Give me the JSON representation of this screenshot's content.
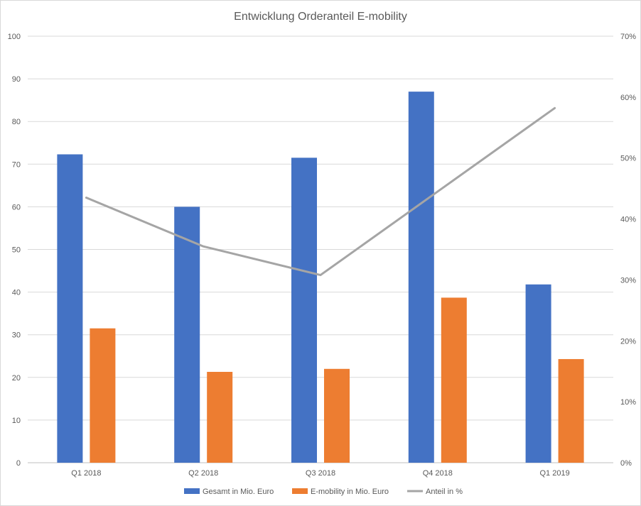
{
  "chart_data": {
    "type": "bar",
    "title": "Entwicklung Orderanteil E-mobility",
    "categories": [
      "Q1 2018",
      "Q2 2018",
      "Q3 2018",
      "Q4 2018",
      "Q1 2019"
    ],
    "series": [
      {
        "name": "Gesamt in Mio. Euro",
        "type": "bar",
        "axis": "left",
        "color": "#4472C4",
        "values": [
          72.3,
          60.0,
          71.5,
          87.0,
          41.8
        ]
      },
      {
        "name": "E-mobility in Mio. Euro",
        "type": "bar",
        "axis": "left",
        "color": "#ED7D31",
        "values": [
          31.5,
          21.3,
          22.0,
          38.7,
          24.3
        ]
      },
      {
        "name": "Anteil in %",
        "type": "line",
        "axis": "right",
        "color": "#A5A5A5",
        "values": [
          0.435,
          0.355,
          0.308,
          0.445,
          0.582
        ]
      }
    ],
    "y_left": {
      "min": 0,
      "max": 100,
      "step": 10,
      "ticks": [
        "0",
        "10",
        "20",
        "30",
        "40",
        "50",
        "60",
        "70",
        "80",
        "90",
        "100"
      ]
    },
    "y_right": {
      "min": 0,
      "max": 0.7,
      "step": 0.1,
      "ticks": [
        "0%",
        "10%",
        "20%",
        "30%",
        "40%",
        "50%",
        "60%",
        "70%"
      ]
    },
    "grid": true,
    "legend": "bottom"
  }
}
